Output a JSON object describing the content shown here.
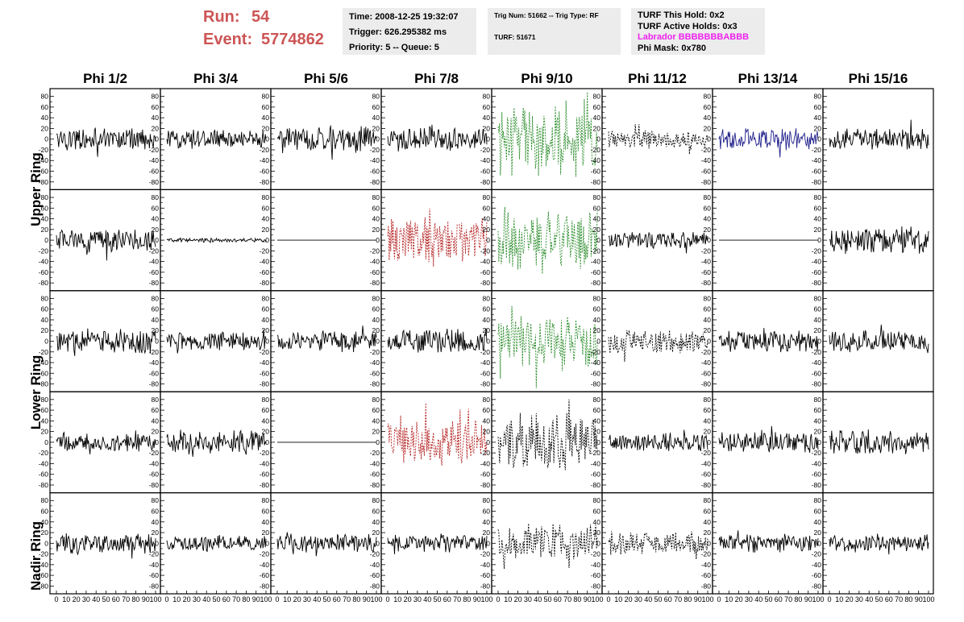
{
  "run": {
    "run_label": "Run:",
    "run_value": "54",
    "event_label": "Event:",
    "event_value": "5774862"
  },
  "info_time": {
    "time": "Time: 2008-12-25 19:32:07",
    "trigger": "Trigger: 626.295382 ms",
    "priority": "Priority: 5 -- Queue: 5"
  },
  "info_trig": {
    "trig": "Trig Num: 51662 -- Trig Type: RF",
    "turf": "TURF: 51671"
  },
  "info_turf": {
    "this_hold": "TURF This Hold: 0x2",
    "active_holds": "TURF Active Holds: 0x3",
    "labrador": "Labrador BBBBBBBABBB",
    "phi_mask": "Phi Mask: 0x780"
  },
  "phi_headers": [
    "Phi 1/2",
    "Phi 3/4",
    "Phi 5/6",
    "Phi 7/8",
    "Phi 9/10",
    "Phi 11/12",
    "Phi 13/14",
    "Phi 15/16"
  ],
  "ring_labels": [
    "Upper Ring",
    "Lower Ring",
    "Nadir Ring"
  ],
  "chart_data": {
    "type": "line",
    "ylim": [
      -90,
      90
    ],
    "xlim": [
      0,
      100
    ],
    "y_ticks": [
      "80",
      "60",
      "40",
      "20",
      "0",
      "-20",
      "-40",
      "-60",
      "-80"
    ],
    "x_ticks": [
      "0",
      "10",
      "20",
      "30",
      "40",
      "50",
      "60",
      "70",
      "80",
      "90",
      "100"
    ],
    "colors": {
      "black": "#000000",
      "green": "#2a8c2a",
      "red": "#b52222",
      "blue": "#22228c"
    },
    "rows": [
      {
        "panels": [
          {
            "color": "black",
            "style": "solid",
            "amp": 16
          },
          {
            "color": "black",
            "style": "solid",
            "amp": 14
          },
          {
            "color": "black",
            "style": "solid",
            "amp": 20
          },
          {
            "color": "black",
            "style": "solid",
            "amp": 18
          },
          {
            "color": "green",
            "style": "dashed",
            "amp": 55
          },
          {
            "color": "black",
            "style": "dashed",
            "amp": 14
          },
          {
            "color": "blue",
            "style": "solid",
            "amp": 16
          },
          {
            "color": "black",
            "style": "solid",
            "amp": 16
          }
        ]
      },
      {
        "panels": [
          {
            "color": "black",
            "style": "solid",
            "amp": 18
          },
          {
            "color": "black",
            "style": "solid",
            "amp": 3
          },
          {
            "color": "black",
            "style": "flat",
            "amp": 0
          },
          {
            "color": "red",
            "style": "dashed",
            "amp": 35
          },
          {
            "color": "green",
            "style": "dashed",
            "amp": 48
          },
          {
            "color": "black",
            "style": "solid",
            "amp": 13
          },
          {
            "color": "black",
            "style": "flat",
            "amp": 0
          },
          {
            "color": "black",
            "style": "solid",
            "amp": 20
          }
        ]
      },
      {
        "panels": [
          {
            "color": "black",
            "style": "solid",
            "amp": 18
          },
          {
            "color": "black",
            "style": "solid",
            "amp": 14
          },
          {
            "color": "black",
            "style": "solid",
            "amp": 16
          },
          {
            "color": "black",
            "style": "solid",
            "amp": 18
          },
          {
            "color": "green",
            "style": "dashed",
            "amp": 42
          },
          {
            "color": "black",
            "style": "dashed",
            "amp": 18
          },
          {
            "color": "black",
            "style": "solid",
            "amp": 16
          },
          {
            "color": "black",
            "style": "solid",
            "amp": 16
          }
        ]
      },
      {
        "panels": [
          {
            "color": "black",
            "style": "solid",
            "amp": 14
          },
          {
            "color": "black",
            "style": "solid",
            "amp": 18
          },
          {
            "color": "black",
            "style": "flat",
            "amp": 0
          },
          {
            "color": "red",
            "style": "dashed",
            "amp": 35
          },
          {
            "color": "black",
            "style": "dashed",
            "amp": 45
          },
          {
            "color": "black",
            "style": "solid",
            "amp": 14
          },
          {
            "color": "black",
            "style": "solid",
            "amp": 16
          },
          {
            "color": "black",
            "style": "solid",
            "amp": 18
          }
        ]
      },
      {
        "panels": [
          {
            "color": "black",
            "style": "solid",
            "amp": 16
          },
          {
            "color": "black",
            "style": "solid",
            "amp": 12
          },
          {
            "color": "black",
            "style": "solid",
            "amp": 14
          },
          {
            "color": "black",
            "style": "solid",
            "amp": 14
          },
          {
            "color": "black",
            "style": "dashed",
            "amp": 30
          },
          {
            "color": "black",
            "style": "dashed",
            "amp": 18
          },
          {
            "color": "black",
            "style": "solid",
            "amp": 14
          },
          {
            "color": "black",
            "style": "solid",
            "amp": 14
          }
        ]
      }
    ]
  }
}
